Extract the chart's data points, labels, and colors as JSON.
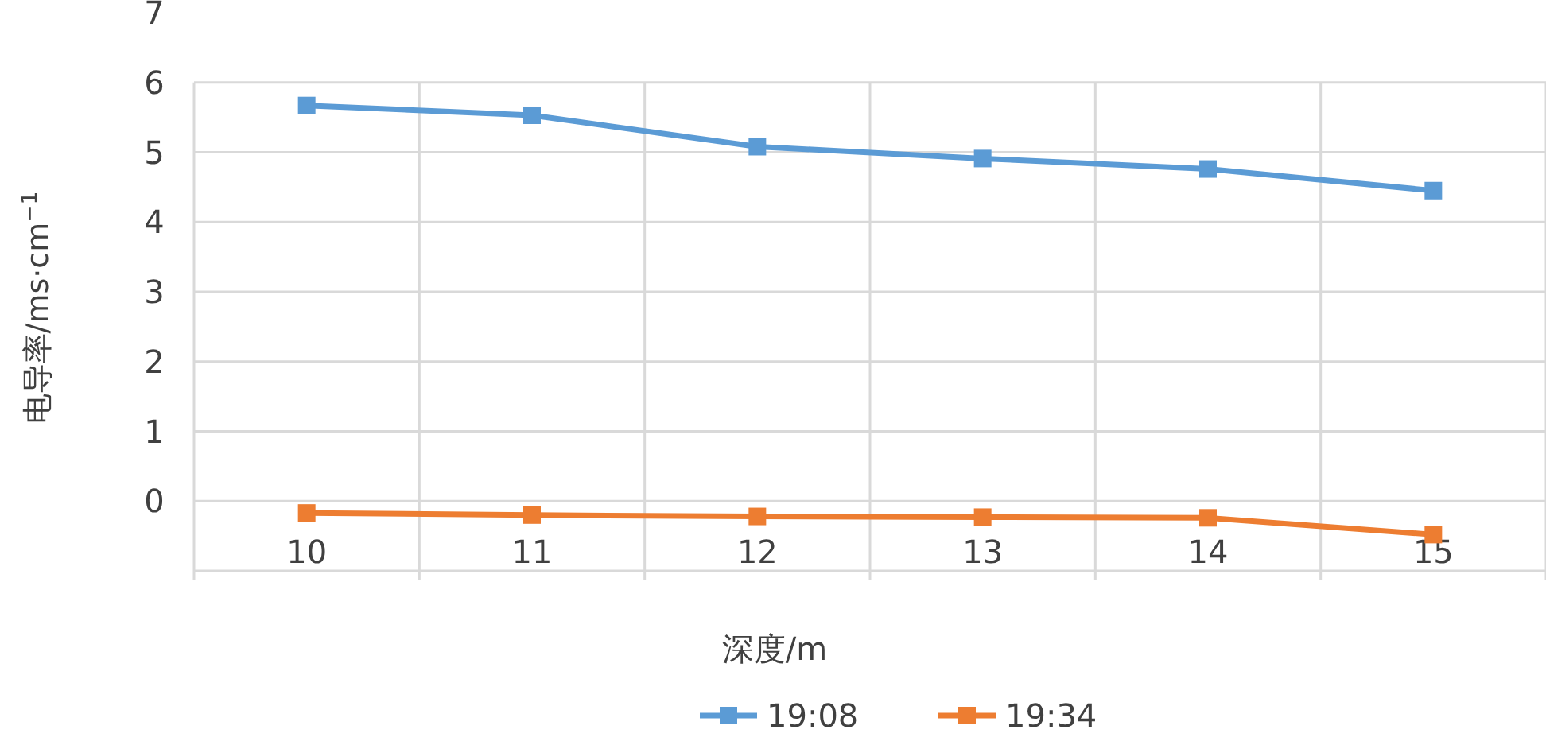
{
  "chart_data": {
    "type": "line",
    "xlabel": "深度/m",
    "ylabel": "电导率/ms·cm$^{−1}$",
    "categories": [
      "10",
      "11",
      "12",
      "13",
      "14",
      "15"
    ],
    "series": [
      {
        "name": "19:08",
        "color": "#5b9bd5",
        "values": [
          5.67,
          5.53,
          5.08,
          4.91,
          4.76,
          4.45
        ]
      },
      {
        "name": "19:34",
        "color": "#ed7d31",
        "values": [
          -0.17,
          -0.2,
          -0.22,
          -0.23,
          -0.24,
          -0.48
        ]
      }
    ],
    "ylim": [
      -1,
      7
    ],
    "yticks": [
      {
        "value": -1,
        "label": null
      },
      0,
      1,
      2,
      3,
      4,
      5,
      6,
      7
    ],
    "grid": true,
    "legend": "bottom",
    "marker": "square",
    "line_style": "solid"
  }
}
